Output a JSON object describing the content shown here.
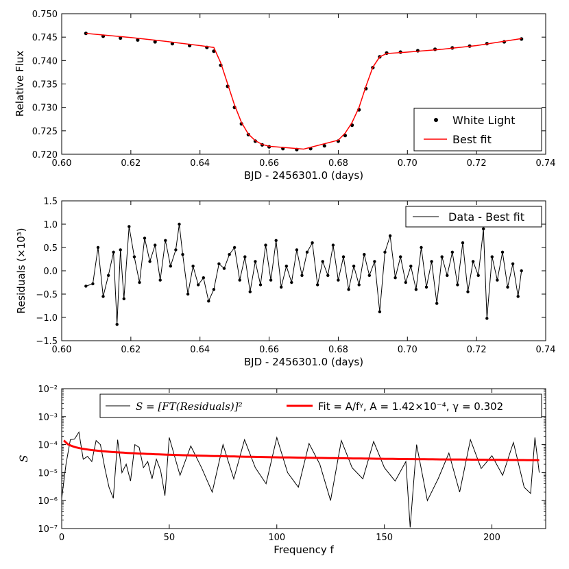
{
  "chart_data": [
    {
      "type": "scatter",
      "panel": "top",
      "xlabel": "BJD - 2456301.0 (days)",
      "ylabel": "Relative Flux",
      "xlim": [
        0.6,
        0.74
      ],
      "ylim": [
        0.72,
        0.75
      ],
      "x_ticks": [
        "0.60",
        "0.62",
        "0.64",
        "0.66",
        "0.68",
        "0.70",
        "0.72",
        "0.74"
      ],
      "y_ticks": [
        "0.720",
        "0.725",
        "0.730",
        "0.735",
        "0.740",
        "0.745",
        "0.750"
      ],
      "legend": [
        "White Light",
        "Best fit"
      ],
      "legend_position": "lower-right",
      "series": [
        {
          "name": "White Light",
          "style": "points",
          "color": "#000000",
          "x": [
            0.607,
            0.612,
            0.617,
            0.622,
            0.627,
            0.632,
            0.637,
            0.642,
            0.644,
            0.646,
            0.648,
            0.65,
            0.652,
            0.654,
            0.656,
            0.658,
            0.66,
            0.664,
            0.668,
            0.672,
            0.676,
            0.68,
            0.682,
            0.684,
            0.686,
            0.688,
            0.69,
            0.692,
            0.694,
            0.698,
            0.703,
            0.708,
            0.713,
            0.718,
            0.723,
            0.728,
            0.733
          ],
          "values": [
            0.7458,
            0.7452,
            0.7448,
            0.7444,
            0.744,
            0.7436,
            0.7432,
            0.7428,
            0.742,
            0.739,
            0.7345,
            0.73,
            0.7265,
            0.7242,
            0.7228,
            0.722,
            0.7216,
            0.7212,
            0.721,
            0.7212,
            0.7218,
            0.7228,
            0.724,
            0.7262,
            0.7295,
            0.734,
            0.7385,
            0.7408,
            0.7416,
            0.7418,
            0.7421,
            0.7424,
            0.7427,
            0.7431,
            0.7436,
            0.744,
            0.7446
          ]
        },
        {
          "name": "Best fit",
          "style": "line",
          "color": "#ff0000",
          "x": [
            0.607,
            0.62,
            0.63,
            0.64,
            0.644,
            0.646,
            0.648,
            0.65,
            0.652,
            0.654,
            0.656,
            0.658,
            0.66,
            0.67,
            0.68,
            0.682,
            0.684,
            0.686,
            0.688,
            0.69,
            0.692,
            0.694,
            0.7,
            0.71,
            0.72,
            0.733
          ],
          "values": [
            0.7458,
            0.7449,
            0.7441,
            0.7432,
            0.7428,
            0.7395,
            0.735,
            0.7305,
            0.7268,
            0.7243,
            0.7229,
            0.7221,
            0.7217,
            0.7211,
            0.723,
            0.7245,
            0.7268,
            0.73,
            0.7345,
            0.7386,
            0.7408,
            0.7415,
            0.7418,
            0.7424,
            0.7432,
            0.7447
          ]
        }
      ]
    },
    {
      "type": "line",
      "panel": "middle",
      "xlabel": "BJD - 2456301.0 (days)",
      "ylabel": "Residuals (×10³)",
      "xlim": [
        0.6,
        0.74
      ],
      "ylim": [
        -1.5,
        1.5
      ],
      "x_ticks": [
        "0.60",
        "0.62",
        "0.64",
        "0.66",
        "0.68",
        "0.70",
        "0.72",
        "0.74"
      ],
      "y_ticks": [
        "−1.5",
        "−1.0",
        "−0.5",
        "0.0",
        "0.5",
        "1.0",
        "1.5"
      ],
      "legend": [
        "Data - Best fit"
      ],
      "legend_position": "top-right",
      "series": [
        {
          "name": "Data - Best fit",
          "style": "line+points",
          "color": "#000000",
          "x": [
            0.607,
            0.609,
            0.6105,
            0.612,
            0.6135,
            0.615,
            0.616,
            0.617,
            0.618,
            0.6195,
            0.621,
            0.6225,
            0.624,
            0.6255,
            0.627,
            0.6285,
            0.63,
            0.6315,
            0.633,
            0.634,
            0.635,
            0.6365,
            0.638,
            0.6395,
            0.641,
            0.6425,
            0.644,
            0.6455,
            0.647,
            0.6485,
            0.65,
            0.6515,
            0.653,
            0.6545,
            0.656,
            0.6575,
            0.659,
            0.6605,
            0.662,
            0.6635,
            0.665,
            0.6665,
            0.668,
            0.6695,
            0.671,
            0.6725,
            0.674,
            0.6755,
            0.677,
            0.6785,
            0.68,
            0.6815,
            0.683,
            0.6845,
            0.686,
            0.6875,
            0.689,
            0.6905,
            0.692,
            0.6935,
            0.695,
            0.6965,
            0.698,
            0.6995,
            0.701,
            0.7025,
            0.704,
            0.7055,
            0.707,
            0.7085,
            0.71,
            0.7115,
            0.713,
            0.7145,
            0.716,
            0.7175,
            0.719,
            0.7205,
            0.722,
            0.723,
            0.7245,
            0.726,
            0.7275,
            0.729,
            0.7305,
            0.732,
            0.733
          ],
          "values": [
            -0.33,
            -0.28,
            0.5,
            -0.55,
            -0.1,
            0.4,
            -1.15,
            0.45,
            -0.6,
            0.95,
            0.3,
            -0.25,
            0.7,
            0.2,
            0.55,
            -0.2,
            0.65,
            0.1,
            0.45,
            1.0,
            0.35,
            -0.5,
            0.1,
            -0.3,
            -0.15,
            -0.65,
            -0.4,
            0.15,
            0.05,
            0.35,
            0.5,
            -0.2,
            0.3,
            -0.45,
            0.2,
            -0.3,
            0.55,
            -0.2,
            0.65,
            -0.35,
            0.1,
            -0.25,
            0.45,
            -0.1,
            0.4,
            0.6,
            -0.3,
            0.2,
            -0.1,
            0.55,
            -0.2,
            0.3,
            -0.4,
            0.1,
            -0.3,
            0.35,
            -0.1,
            0.2,
            -0.88,
            0.4,
            0.75,
            -0.15,
            0.3,
            -0.25,
            0.1,
            -0.4,
            0.5,
            -0.35,
            0.2,
            -0.7,
            0.3,
            -0.1,
            0.4,
            -0.3,
            0.6,
            -0.45,
            0.2,
            -0.1,
            0.9,
            -1.02,
            0.3,
            -0.2,
            0.4,
            -0.35,
            0.15,
            -0.55,
            0.0
          ]
        }
      ]
    },
    {
      "type": "line",
      "panel": "bottom",
      "yscale": "log",
      "xlabel": "Frequency f",
      "ylabel": "S",
      "xlim": [
        0,
        225
      ],
      "ylim_log10": [
        -7,
        -2
      ],
      "x_ticks": [
        "0",
        "50",
        "100",
        "150",
        "200"
      ],
      "y_ticks": [
        "10⁻⁷",
        "10⁻⁶",
        "10⁻⁵",
        "10⁻⁴",
        "10⁻³",
        "10⁻²"
      ],
      "legend": [
        "S = [FT(Residuals)]²",
        "Fit = A/fᵞ, A = 1.42×10⁻⁴, γ = 0.302"
      ],
      "legend_position": "top",
      "fit_parameters": {
        "A": "1.42×10⁻⁴",
        "gamma": "0.302"
      },
      "series": [
        {
          "name": "S = [FT(Residuals)]²",
          "style": "line",
          "color": "#000000",
          "x": [
            0,
            2,
            4,
            6,
            8,
            10,
            12,
            14,
            16,
            18,
            20,
            22,
            24,
            26,
            28,
            30,
            32,
            34,
            36,
            38,
            40,
            42,
            44,
            46,
            48,
            50,
            55,
            60,
            65,
            70,
            75,
            80,
            85,
            90,
            95,
            100,
            105,
            110,
            115,
            120,
            125,
            130,
            135,
            140,
            145,
            150,
            155,
            160,
            162,
            165,
            170,
            175,
            180,
            185,
            190,
            195,
            200,
            205,
            210,
            215,
            218,
            220,
            222
          ],
          "values": [
            1.2e-06,
            2e-05,
            0.00015,
            0.00016,
            0.00028,
            3e-05,
            3.8e-05,
            2.5e-05,
            0.00014,
            0.0001,
            1.5e-05,
            3e-06,
            1.2e-06,
            0.00015,
            1e-05,
            2e-05,
            5e-06,
            0.0001,
            8e-05,
            1.5e-05,
            2.5e-05,
            6e-06,
            3e-05,
            1.2e-05,
            1.5e-06,
            0.00018,
            8e-06,
            9e-05,
            1.5e-05,
            2e-06,
            0.0001,
            6e-06,
            0.00015,
            1.5e-05,
            4e-06,
            0.00018,
            1e-05,
            3e-06,
            0.00011,
            2e-05,
            1e-06,
            0.00014,
            1.5e-05,
            6e-06,
            0.00013,
            1.5e-05,
            5e-06,
            2.5e-05,
            1.1e-07,
            0.0001,
            1e-06,
            6e-06,
            5e-05,
            2e-06,
            0.00015,
            1.4e-05,
            4e-05,
            8e-06,
            0.00012,
            3e-06,
            1.8e-06,
            0.00018,
            1e-05
          ]
        },
        {
          "name": "Fit = A/fᵞ",
          "style": "line",
          "color": "#ff0000",
          "A": 0.000142,
          "gamma": 0.302,
          "f_range": [
            1,
            222
          ]
        }
      ]
    }
  ]
}
